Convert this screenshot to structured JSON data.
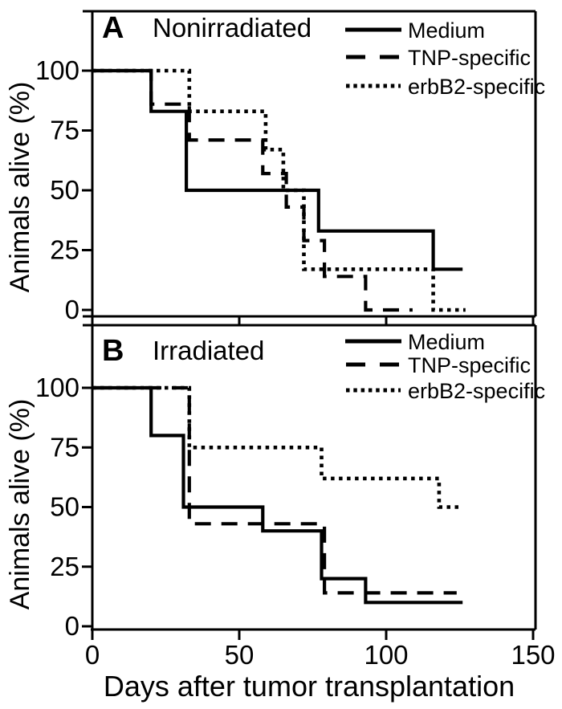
{
  "figure_type": "kaplan-meier-survival-curves",
  "xlabel": "Days after tumor transplantation",
  "ylabel": "Animals alive (%)",
  "colors": {
    "foreground": "#000000",
    "background": "#ffffff"
  },
  "chart_data": [
    {
      "type": "line",
      "step": true,
      "panel_label": "A",
      "title": "Nonirradiated",
      "ylabel": "Animals alive (%)",
      "xlim": [
        0,
        150
      ],
      "ylim": [
        0,
        100
      ],
      "xticks": [
        0,
        50,
        100,
        150
      ],
      "yticks": [
        100,
        75,
        50,
        25,
        0
      ],
      "grid": false,
      "legend_position": "top-right",
      "series": [
        {
          "name": "Medium",
          "line_style": "solid",
          "steps": [
            [
              0,
              100
            ],
            [
              20,
              83
            ],
            [
              32,
              50
            ],
            [
              77,
              33
            ],
            [
              116,
              17
            ]
          ],
          "end_day": 126
        },
        {
          "name": "TNP-specific",
          "line_style": "dashed",
          "steps": [
            [
              0,
              100
            ],
            [
              20,
              86
            ],
            [
              33,
              71
            ],
            [
              58,
              57
            ],
            [
              66,
              43
            ],
            [
              72,
              29
            ],
            [
              79,
              14
            ],
            [
              93,
              0
            ]
          ],
          "end_day": 109
        },
        {
          "name": "erbB2-specific",
          "line_style": "dotted",
          "steps": [
            [
              0,
              100
            ],
            [
              33,
              83
            ],
            [
              59,
              67
            ],
            [
              65,
              50
            ],
            [
              72,
              17
            ],
            [
              116,
              0
            ]
          ],
          "end_day": 127
        }
      ]
    },
    {
      "type": "line",
      "step": true,
      "panel_label": "B",
      "title": "Irradiated",
      "ylabel": "Animals alive (%)",
      "xlim": [
        0,
        150
      ],
      "ylim": [
        0,
        100
      ],
      "xticks": [
        0,
        50,
        100,
        150
      ],
      "yticks": [
        100,
        75,
        50,
        25,
        0
      ],
      "grid": false,
      "legend_position": "top-right",
      "series": [
        {
          "name": "Medium",
          "line_style": "solid",
          "steps": [
            [
              0,
              100
            ],
            [
              20,
              80
            ],
            [
              31,
              50
            ],
            [
              58,
              40
            ],
            [
              78,
              20
            ],
            [
              93,
              10
            ]
          ],
          "end_day": 126
        },
        {
          "name": "TNP-specific",
          "line_style": "dashed",
          "steps": [
            [
              0,
              100
            ],
            [
              33,
              43
            ],
            [
              79,
              14
            ]
          ],
          "end_day": 124
        },
        {
          "name": "erbB2-specific",
          "line_style": "dotted",
          "steps": [
            [
              0,
              100
            ],
            [
              33,
              75
            ],
            [
              78,
              62
            ],
            [
              118,
              50
            ]
          ],
          "end_day": 126
        }
      ]
    }
  ]
}
